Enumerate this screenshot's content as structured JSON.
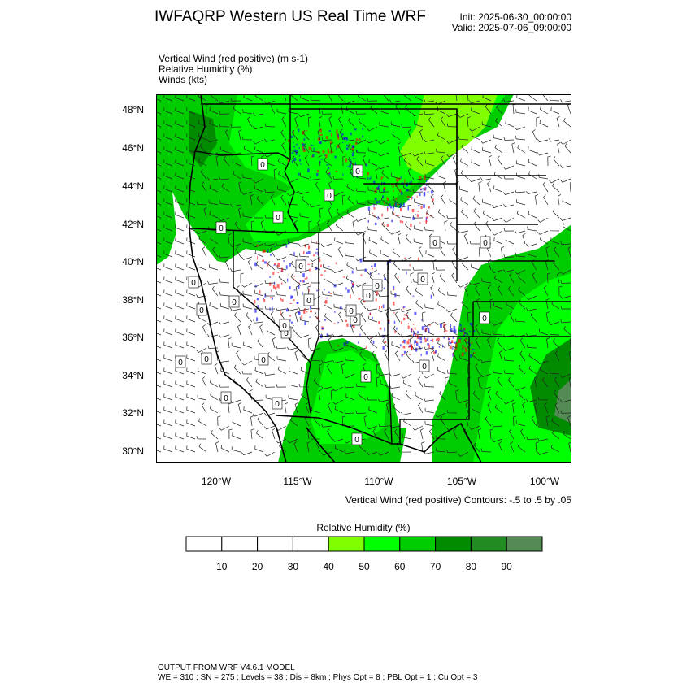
{
  "header": {
    "title": "IWFAQRP Western US Real Time WRF",
    "init": "Init: 2025-06-30_00:00:00",
    "valid": "Valid: 2025-07-06_09:00:00"
  },
  "fields": [
    "Vertical Wind (red positive)   (m s-1)",
    "Relative Humidity   (%)",
    "Winds   (kts)"
  ],
  "map": {
    "lat_labels": [
      "48°N",
      "46°N",
      "44°N",
      "42°N",
      "40°N",
      "38°N",
      "36°N",
      "34°N",
      "32°N",
      "30°N"
    ],
    "lon_labels": [
      "120°W",
      "115°W",
      "110°W",
      "105°W",
      "100°W"
    ],
    "contour_label": "0",
    "colors": {
      "land_dry": "#ffffff",
      "rh40": "#7fff00",
      "rh50": "#00ff00",
      "rh60": "#00cd00",
      "rh70": "#008b00",
      "rh80": "#228b22",
      "rh90": "#548b54",
      "updraft": "#ff0000",
      "downdraft": "#0000ff"
    }
  },
  "contour_info": "Vertical Wind (red positive) Contours: -.5 to .5 by .05",
  "colorbar": {
    "title": "Relative Humidity  (%)",
    "labels": [
      "10",
      "20",
      "30",
      "40",
      "50",
      "60",
      "70",
      "80",
      "90"
    ],
    "colors": [
      "#ffffff",
      "#ffffff",
      "#ffffff",
      "#ffffff",
      "#7fff00",
      "#00ff00",
      "#00cd00",
      "#008b00",
      "#228b22",
      "#548b54"
    ]
  },
  "footer": {
    "line1": "OUTPUT FROM WRF V4.6.1 MODEL",
    "line2": "WE = 310 ; SN = 275 ; Levels = 38 ; Dis = 8km ; Phys Opt = 8 ; PBL Opt = 1 ; Cu Opt = 3"
  }
}
